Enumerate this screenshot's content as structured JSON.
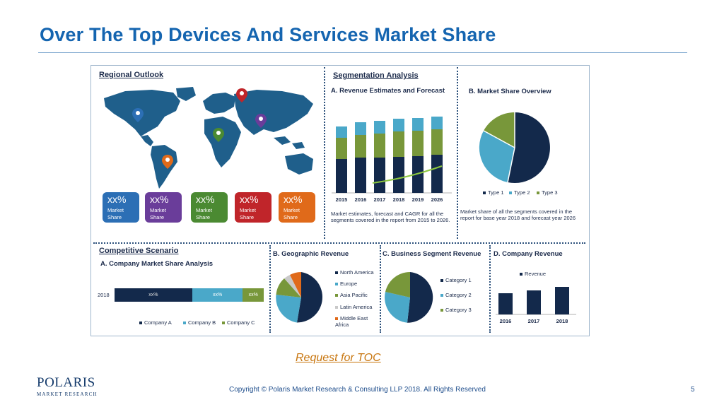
{
  "slide": {
    "title": "Over The Top Devices And Services Market Share",
    "request_link": "Request for TOC",
    "copyright": "Copyright © Polaris Market Research & Consulting LLP 2018. All Rights Reserved",
    "page_number": "5",
    "logo": {
      "brand": "POLARIS",
      "sub": "MARKET RESEARCH"
    }
  },
  "regional": {
    "heading": "Regional Outlook",
    "cards": [
      {
        "pct": "xx%",
        "label1": "Market",
        "label2": "Share",
        "color": "#2c6fb5"
      },
      {
        "pct": "xx%",
        "label1": "Market",
        "label2": "Share",
        "color": "#6a3d9a"
      },
      {
        "pct": "xx%",
        "label1": "Market",
        "label2": "Share",
        "color": "#4b8a32"
      },
      {
        "pct": "xx%",
        "label1": "Market",
        "label2": "Share",
        "color": "#c0252a"
      },
      {
        "pct": "xx%",
        "label1": "Market",
        "label2": "Share",
        "color": "#e06a1a"
      }
    ]
  },
  "segmentation": {
    "heading": "Segmentation Analysis",
    "revenue": {
      "title": "A. Revenue Estimates and Forecast",
      "years": [
        "2015",
        "2016",
        "2017",
        "2018",
        "2019",
        "2026"
      ],
      "caption": "Market estimates, forecast and CAGR for all the segments covered in the report from 2015 to 2026."
    },
    "share": {
      "title": "B. Market Share Overview",
      "legend": [
        "Type 1",
        "Type 2",
        "Type 3"
      ],
      "caption": "Market share of all the segments covered in the report for base year 2018 and forecast year 2026"
    }
  },
  "competitive": {
    "heading": "Competitive Scenario",
    "title": "A. Company Market Share Analysis",
    "year": "2018",
    "segment_labels": [
      "xx%",
      "xx%",
      "xx%"
    ],
    "legend": [
      "Company A",
      "Company B",
      "Company C"
    ]
  },
  "geographic": {
    "title": "B. Geographic Revenue",
    "legend": [
      "North America",
      "Europe",
      "Asia Pacific",
      "Latin America",
      "Middle East Africa"
    ]
  },
  "business": {
    "title": "C. Business Segment Revenue",
    "legend": [
      "Category 1",
      "Category 2",
      "Category 3"
    ]
  },
  "company_rev": {
    "title": "D. Company Revenue",
    "legend": "Revenue",
    "years": [
      "2016",
      "2017",
      "2018"
    ]
  },
  "colors": {
    "navy": "#13294b",
    "teal": "#4aa8c9",
    "green": "#78973a",
    "accent": "#1565b0"
  }
}
